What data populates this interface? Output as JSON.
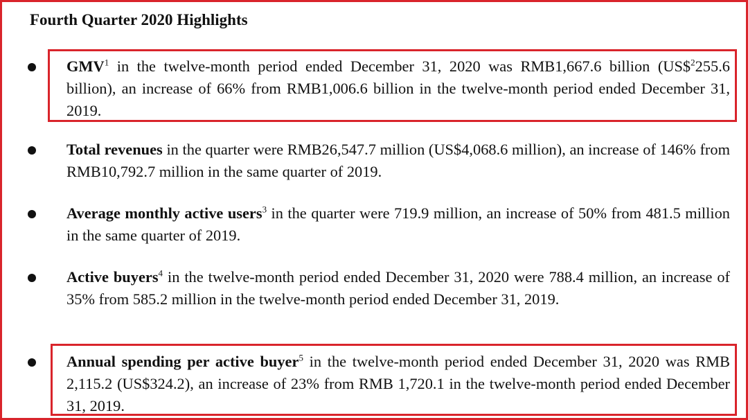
{
  "title": "Fourth Quarter 2020 Highlights",
  "highlight_color": "#d9242b",
  "items": [
    {
      "bold": "GMV",
      "sup": "1",
      "parts": [
        " in the twelve-month period ended December 31, 2020 was RMB1,667.6 billion (US$",
        "2",
        "255.6 billion), an increase of 66% from RMB1,006.6 billion in the twelve-month period ended December 31, 2019."
      ],
      "highlighted": true
    },
    {
      "bold": "Total revenues",
      "text": " in the quarter were RMB26,547.7 million (US$4,068.6 million), an increase of 146% from RMB10,792.7 million in the same quarter of 2019.",
      "highlighted": false
    },
    {
      "bold": "Average monthly active users",
      "sup": "3",
      "text": " in the quarter were 719.9 million, an increase of 50% from 481.5 million in the same quarter of 2019.",
      "highlighted": false
    },
    {
      "bold": "Active buyers",
      "sup": "4",
      "text": " in the twelve-month period ended December 31, 2020 were 788.4 million, an increase of 35% from 585.2 million in the twelve-month period ended December 31, 2019.",
      "highlighted": false
    },
    {
      "bold": "Annual spending per active buyer",
      "sup": "5",
      "text": " in the twelve-month period ended December 31, 2020 was RMB 2,115.2 (US$324.2), an increase of 23% from RMB 1,720.1 in the twelve-month period ended December 31, 2019.",
      "highlighted": true
    }
  ]
}
